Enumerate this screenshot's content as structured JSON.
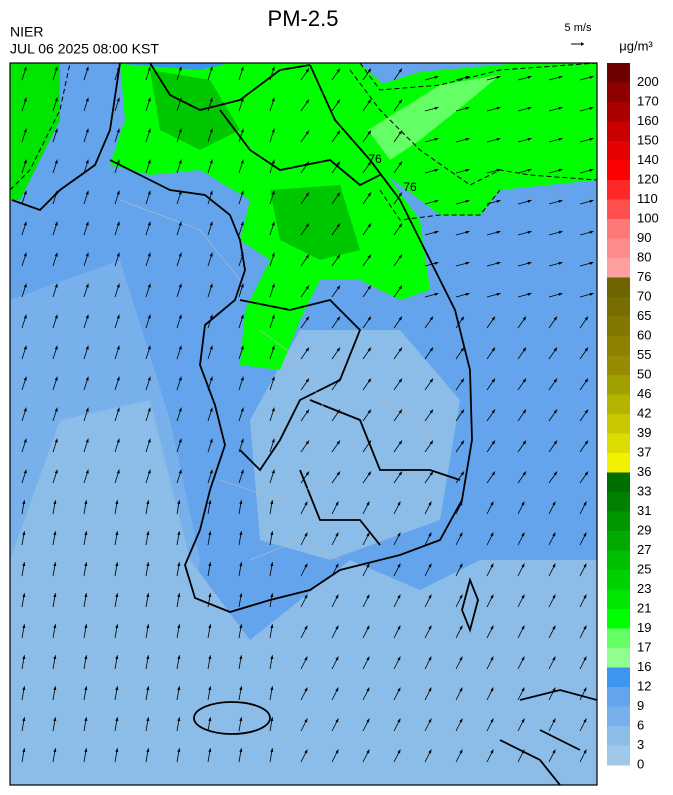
{
  "header": {
    "title": "PM-2.5",
    "agency": "NIER",
    "datetime": "JUL 06 2025 08:00 KST",
    "wind_scale": "5 m/s"
  },
  "map": {
    "contour_labels": [
      "76",
      "76"
    ]
  },
  "colorbar": {
    "unit": "μg/m³",
    "labels": [
      "200",
      "170",
      "160",
      "150",
      "140",
      "120",
      "110",
      "100",
      "90",
      "80",
      "76",
      "70",
      "65",
      "60",
      "55",
      "50",
      "46",
      "42",
      "39",
      "37",
      "36",
      "33",
      "31",
      "29",
      "27",
      "25",
      "23",
      "21",
      "19",
      "17",
      "16",
      "12",
      "9",
      "6",
      "3",
      "0"
    ],
    "colors": [
      "#6e0000",
      "#8c0000",
      "#aa0000",
      "#c80000",
      "#e60000",
      "#ff0000",
      "#ff2828",
      "#ff5050",
      "#ff7878",
      "#ff8c8c",
      "#ffa0a0",
      "#6e6400",
      "#786e00",
      "#827800",
      "#8c8200",
      "#968c00",
      "#a0a000",
      "#b4b400",
      "#c8c800",
      "#dcdc00",
      "#f0f000",
      "#006e00",
      "#008200",
      "#009600",
      "#00aa00",
      "#00be00",
      "#00d200",
      "#00e600",
      "#00ff00",
      "#64ff64",
      "#90ff90",
      "#3c96f0",
      "#64a4ec",
      "#78b0ec",
      "#8cbce8",
      "#a0c8e8"
    ]
  }
}
